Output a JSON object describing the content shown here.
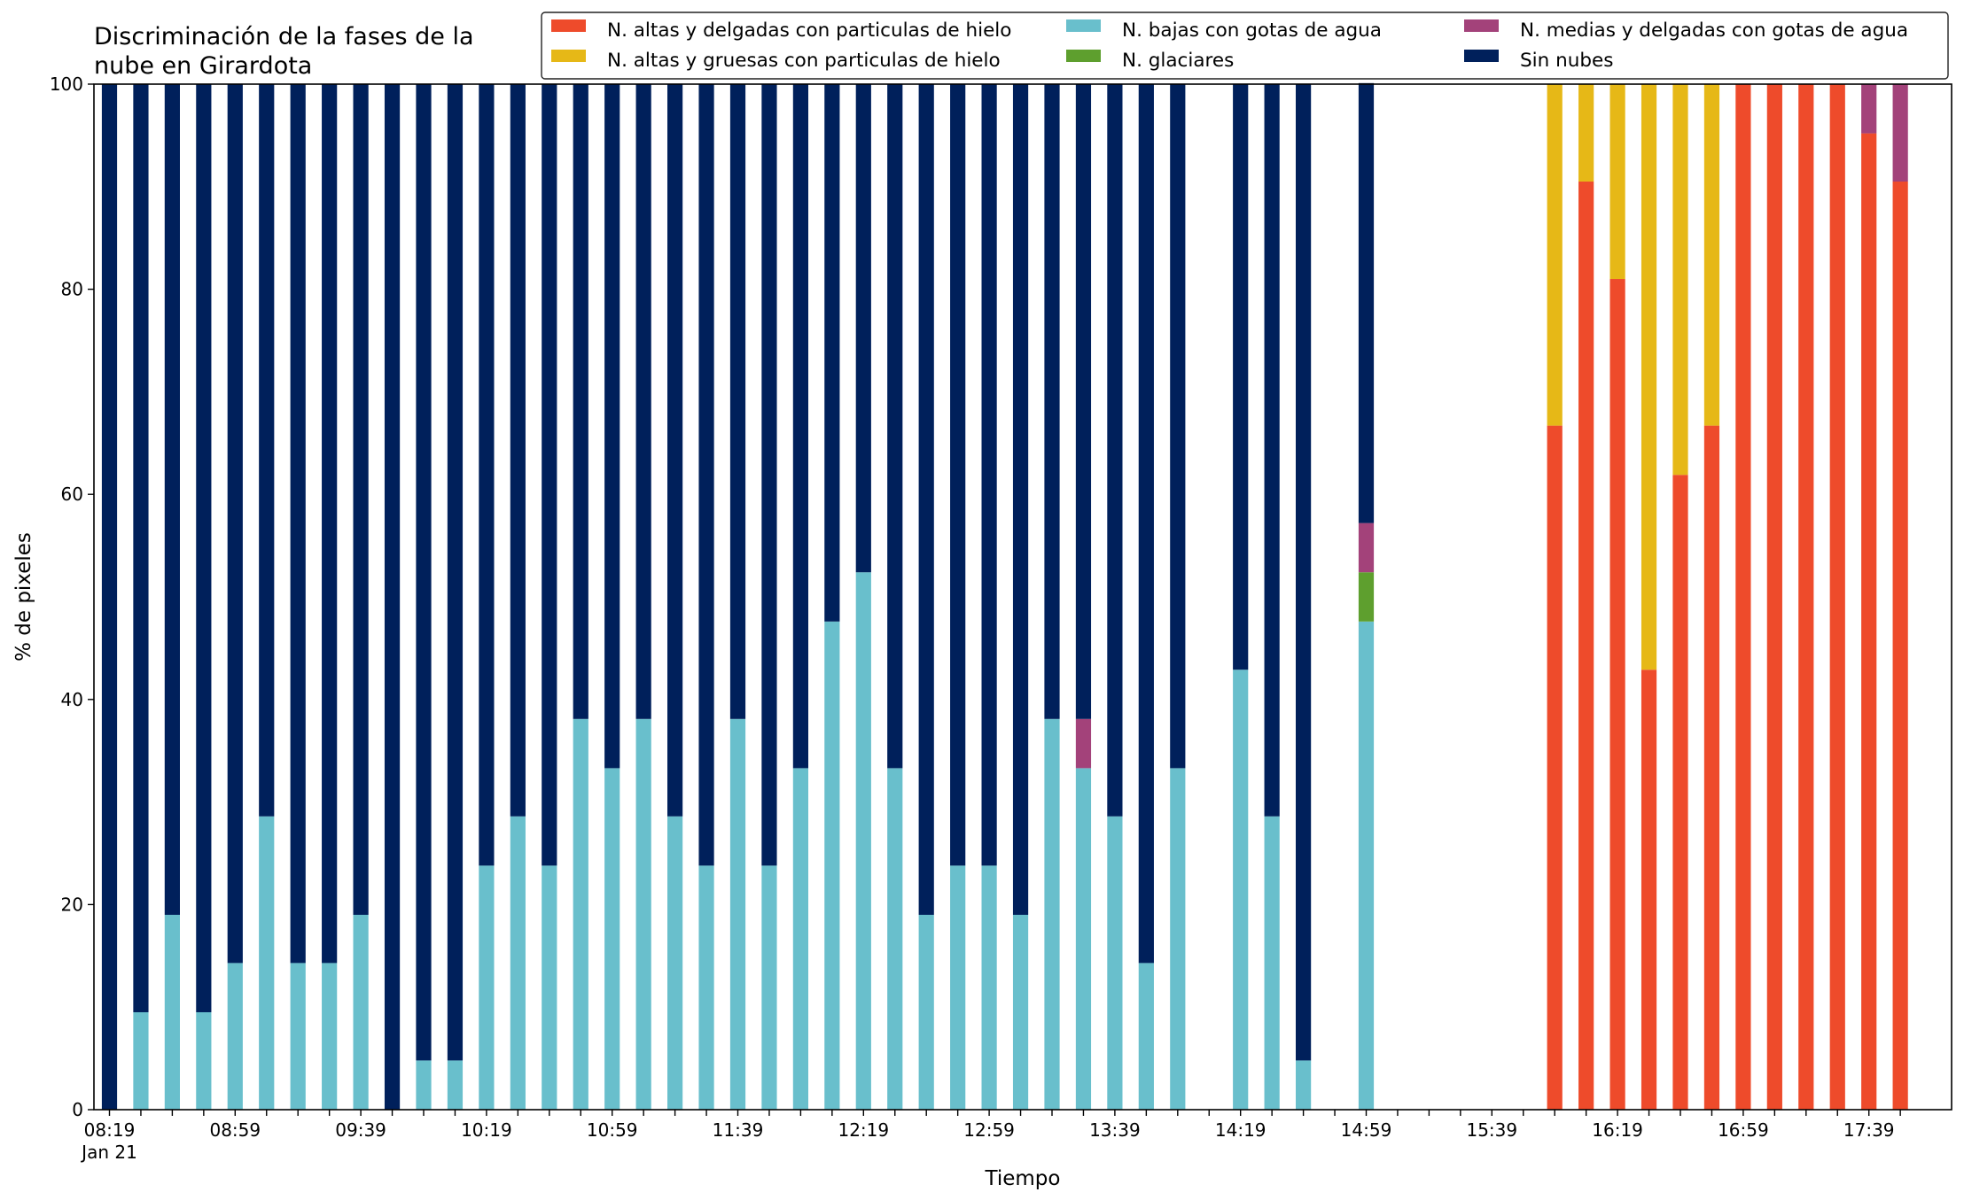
{
  "chart_data": {
    "type": "bar",
    "stacked": true,
    "title_lines": [
      "Discriminación de la fases de la",
      "nube en Girardota"
    ],
    "xlabel": "Tiempo",
    "ylabel": "% de pixeles",
    "ylim": [
      0,
      100
    ],
    "yticks": [
      0,
      20,
      40,
      60,
      80,
      100
    ],
    "grid": false,
    "legend_position": "top-right",
    "legend_columns": 3,
    "x_date_label": "Jan 21",
    "time_start": "08:19",
    "time_step_minutes": 10,
    "x_tick_labels": [
      "08:19",
      "08:59",
      "09:39",
      "10:19",
      "10:59",
      "11:39",
      "12:19",
      "12:59",
      "13:39",
      "14:19",
      "14:59",
      "15:39",
      "16:19",
      "16:59",
      "17:39"
    ],
    "times": [
      "08:19",
      "08:29",
      "08:39",
      "08:49",
      "08:59",
      "09:09",
      "09:19",
      "09:29",
      "09:39",
      "09:49",
      "09:59",
      "10:09",
      "10:19",
      "10:29",
      "10:39",
      "10:49",
      "10:59",
      "11:09",
      "11:19",
      "11:29",
      "11:39",
      "11:49",
      "11:59",
      "12:09",
      "12:19",
      "12:29",
      "12:39",
      "12:49",
      "12:59",
      "13:09",
      "13:19",
      "13:29",
      "13:39",
      "13:49",
      "13:59",
      "14:09",
      "14:19",
      "14:29",
      "14:39",
      "14:49",
      "14:59",
      "15:09",
      "15:19",
      "15:29",
      "15:39",
      "15:49",
      "15:59",
      "16:09",
      "16:19",
      "16:29",
      "16:39",
      "16:49",
      "16:59",
      "17:09",
      "17:19",
      "17:29",
      "17:39",
      "17:49"
    ],
    "series": [
      {
        "name": "N. altas y delgadas con particulas de hielo",
        "color": "#ee4b2b",
        "values": [
          0,
          0,
          0,
          0,
          0,
          0,
          0,
          0,
          0,
          0,
          0,
          0,
          0,
          0,
          0,
          0,
          0,
          0,
          0,
          0,
          0,
          0,
          0,
          0,
          0,
          0,
          0,
          0,
          0,
          0,
          0,
          0,
          0,
          0,
          0,
          0,
          0,
          0,
          0,
          0,
          0,
          0,
          0,
          0,
          0,
          0,
          66.7,
          90.5,
          81.0,
          42.9,
          61.9,
          66.7,
          100,
          100,
          100,
          100,
          95.2,
          90.5
        ]
      },
      {
        "name": "N. altas y gruesas con particulas de hielo",
        "color": "#e6b817",
        "values": [
          0,
          0,
          0,
          0,
          0,
          0,
          0,
          0,
          0,
          0,
          0,
          0,
          0,
          0,
          0,
          0,
          0,
          0,
          0,
          0,
          0,
          0,
          0,
          0,
          0,
          0,
          0,
          0,
          0,
          0,
          0,
          0,
          0,
          0,
          0,
          0,
          0,
          0,
          0,
          0,
          0,
          0,
          0,
          0,
          0,
          0,
          33.3,
          9.5,
          19.0,
          57.1,
          38.1,
          33.3,
          0,
          0,
          0,
          0,
          0,
          0
        ]
      },
      {
        "name": "N. bajas con gotas de agua",
        "color": "#69bfcc",
        "values": [
          0,
          9.5,
          19.0,
          9.5,
          14.3,
          28.6,
          14.3,
          14.3,
          19.0,
          0,
          4.8,
          4.8,
          23.8,
          28.6,
          23.8,
          38.1,
          33.3,
          38.1,
          28.6,
          23.8,
          38.1,
          23.8,
          33.3,
          47.6,
          52.4,
          33.3,
          19.0,
          23.8,
          23.8,
          19.0,
          38.1,
          33.3,
          28.6,
          14.3,
          33.3,
          0,
          42.9,
          28.6,
          4.8,
          0,
          47.6,
          0,
          0,
          0,
          0,
          0,
          0,
          0,
          0,
          0,
          0,
          0,
          0,
          0,
          0,
          0,
          0,
          0
        ]
      },
      {
        "name": "N. glaciares",
        "color": "#5e9f2e",
        "values": [
          0,
          0,
          0,
          0,
          0,
          0,
          0,
          0,
          0,
          0,
          0,
          0,
          0,
          0,
          0,
          0,
          0,
          0,
          0,
          0,
          0,
          0,
          0,
          0,
          0,
          0,
          0,
          0,
          0,
          0,
          0,
          0,
          0,
          0,
          0,
          0,
          0,
          0,
          0,
          0,
          4.8,
          0,
          0,
          0,
          0,
          0,
          0,
          0,
          0,
          0,
          0,
          0,
          0,
          0,
          0,
          0,
          0,
          0
        ]
      },
      {
        "name": "N. medias y delgadas con gotas de agua",
        "color": "#a3427a",
        "values": [
          0,
          0,
          0,
          0,
          0,
          0,
          0,
          0,
          0,
          0,
          0,
          0,
          0,
          0,
          0,
          0,
          0,
          0,
          0,
          0,
          0,
          0,
          0,
          0,
          0,
          0,
          0,
          0,
          0,
          0,
          0,
          4.8,
          0,
          0,
          0,
          0,
          0,
          0,
          0,
          0,
          4.8,
          0,
          0,
          0,
          0,
          0,
          0,
          0,
          0,
          0,
          0,
          0,
          0,
          0,
          0,
          0,
          4.8,
          9.5
        ]
      },
      {
        "name": "Sin nubes",
        "color": "#00205b",
        "values": [
          100,
          90.5,
          81.0,
          90.5,
          85.7,
          71.4,
          85.7,
          85.7,
          81.0,
          100,
          95.2,
          95.2,
          76.2,
          71.4,
          76.2,
          61.9,
          66.7,
          61.9,
          71.4,
          76.2,
          61.9,
          76.2,
          66.7,
          52.4,
          47.6,
          66.7,
          81.0,
          76.2,
          76.2,
          81.0,
          61.9,
          61.9,
          71.4,
          85.7,
          66.7,
          0,
          57.1,
          71.4,
          95.2,
          0,
          42.9,
          0,
          0,
          0,
          0,
          0,
          0,
          0,
          0,
          0,
          0,
          0,
          0,
          0,
          0,
          0,
          0,
          0
        ]
      }
    ]
  }
}
